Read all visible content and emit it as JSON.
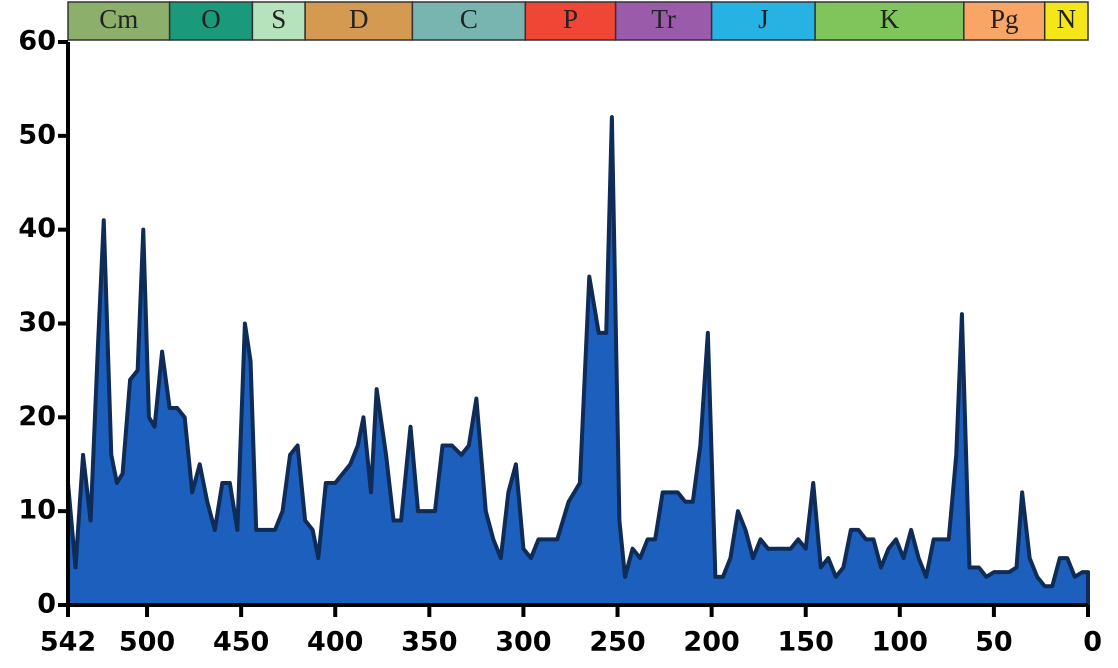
{
  "chart_data": {
    "type": "area",
    "periods": [
      {
        "name": "Cm",
        "start": 542,
        "end": 488,
        "color": "#8cb06c"
      },
      {
        "name": "O",
        "start": 488,
        "end": 444,
        "color": "#1a9a7a"
      },
      {
        "name": "S",
        "start": 444,
        "end": 416,
        "color": "#b6e3bc"
      },
      {
        "name": "D",
        "start": 416,
        "end": 359,
        "color": "#d59a52"
      },
      {
        "name": "C",
        "start": 359,
        "end": 299,
        "color": "#78b5b0"
      },
      {
        "name": "P",
        "start": 299,
        "end": 251,
        "color": "#ef4636"
      },
      {
        "name": "Tr",
        "start": 251,
        "end": 200,
        "color": "#9a5bab"
      },
      {
        "name": "J",
        "start": 200,
        "end": 145,
        "color": "#27b2e4"
      },
      {
        "name": "K",
        "start": 145,
        "end": 66,
        "color": "#7fc55c"
      },
      {
        "name": "Pg",
        "start": 66,
        "end": 23,
        "color": "#f8a566"
      },
      {
        "name": "N",
        "start": 23,
        "end": 0,
        "color": "#f5e61a"
      }
    ],
    "x": [
      542,
      538,
      534,
      530,
      526,
      523,
      519,
      516,
      513,
      509,
      505,
      502,
      499,
      496,
      492,
      488,
      484,
      480,
      476,
      472,
      468,
      464,
      460,
      456,
      452,
      448,
      445,
      442,
      438,
      432,
      428,
      424,
      420,
      416,
      412,
      409,
      405,
      400,
      396,
      392,
      388,
      385,
      381,
      378,
      373,
      369,
      365,
      360,
      356,
      352,
      347,
      343,
      338,
      333,
      329,
      325,
      320,
      316,
      312,
      308,
      304,
      300,
      296,
      292,
      288,
      282,
      276,
      270,
      265,
      260,
      256,
      253,
      249,
      246,
      242,
      238,
      234,
      230,
      226,
      222,
      218,
      214,
      210,
      206,
      202,
      198,
      194,
      190,
      186,
      182,
      178,
      174,
      170,
      166,
      162,
      158,
      154,
      150,
      146,
      142,
      138,
      134,
      130,
      126,
      122,
      118,
      114,
      110,
      106,
      102,
      98,
      94,
      90,
      86,
      82,
      78,
      74,
      70,
      67,
      63,
      58,
      54,
      50,
      46,
      42,
      38,
      35,
      31,
      27,
      23,
      19,
      15,
      11,
      7,
      3,
      0
    ],
    "values": [
      13,
      4,
      16,
      9,
      28,
      41,
      16,
      13,
      14,
      24,
      25,
      40,
      20,
      19,
      27,
      21,
      21,
      20,
      12,
      15,
      11,
      8,
      13,
      13,
      8,
      30,
      26,
      8,
      8,
      8,
      10,
      16,
      17,
      9,
      8,
      5,
      13,
      13,
      14,
      15,
      17,
      20,
      12,
      23,
      16,
      9,
      9,
      19,
      10,
      10,
      10,
      17,
      17,
      16,
      17,
      22,
      10,
      7,
      5,
      12,
      15,
      6,
      5,
      7,
      7,
      7,
      11,
      13,
      35,
      29,
      29,
      52,
      9,
      3,
      6,
      5,
      7,
      7,
      12,
      12,
      12,
      11,
      11,
      17,
      29,
      3,
      3,
      5,
      10,
      8,
      5,
      7,
      6,
      6,
      6,
      6,
      7,
      6,
      13,
      4,
      5,
      3,
      4,
      8,
      8,
      7,
      7,
      4,
      6,
      7,
      5,
      8,
      5,
      3,
      7,
      7,
      7,
      16,
      31,
      4,
      4,
      3,
      3.5,
      3.5,
      3.5,
      4,
      12,
      5,
      3,
      2,
      2,
      5,
      5,
      3,
      3.5,
      3.5
    ],
    "color": "#1d5fbd",
    "line_color": "#0f2b57",
    "xlim": [
      542,
      0
    ],
    "ylim": [
      0,
      60
    ],
    "xticks": [
      542,
      500,
      450,
      400,
      350,
      300,
      250,
      200,
      150,
      100,
      50,
      0
    ],
    "yticks": [
      0,
      10,
      20,
      30,
      40,
      50,
      60
    ]
  }
}
